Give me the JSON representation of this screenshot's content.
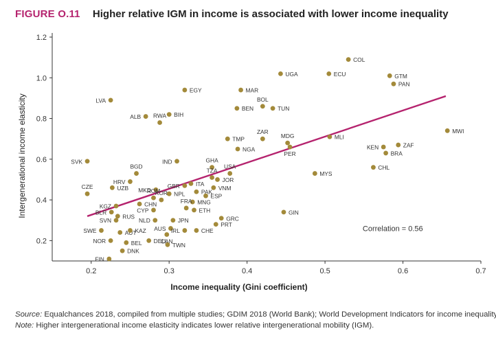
{
  "figure": {
    "label": "FIGURE O.11",
    "title": "Higher relative IGM in income is associated with lower income inequality"
  },
  "notes": {
    "source_label": "Source:",
    "source_text": " Equalchances 2018, compiled from multiple studies; GDIM 2018 (World Bank); World Development Indicators for income inequality.",
    "note_label": "Note:",
    "note_text": " Higher intergenerational income elasticity indicates lower relative intergenerational mobility (IGM)."
  },
  "chart_data": {
    "type": "scatter",
    "title": "Higher relative IGM in income is associated with lower income inequality",
    "xlabel": "Income inequality (Gini coefficient)",
    "ylabel": "Intergenerational income elasticity",
    "xlim": [
      0.15,
      0.7
    ],
    "ylim": [
      0.1,
      1.2
    ],
    "xticks": [
      0.2,
      0.3,
      0.4,
      0.5,
      0.6,
      0.7
    ],
    "yticks": [
      0.2,
      0.4,
      0.6,
      0.8,
      1.0,
      1.2
    ],
    "xtick_labels": [
      "0.2",
      "0.3",
      "0.4",
      "0.5",
      "0.6",
      "0.7"
    ],
    "ytick_labels": [
      "0.2",
      "0.4",
      "0.6",
      "0.8",
      "1.0",
      "1.2"
    ],
    "grid": false,
    "annotation": "Correlation = 0.56",
    "point_color": "#a38a3a",
    "trend_color": "#b5236e",
    "trend_line": {
      "x": [
        0.195,
        0.655
      ],
      "y": [
        0.32,
        0.91
      ]
    },
    "points": [
      {
        "label": "COL",
        "x": 0.53,
        "y": 1.09
      },
      {
        "label": "UGA",
        "x": 0.443,
        "y": 1.02
      },
      {
        "label": "ECU",
        "x": 0.505,
        "y": 1.02
      },
      {
        "label": "GTM",
        "x": 0.583,
        "y": 1.01
      },
      {
        "label": "PAN",
        "x": 0.588,
        "y": 0.97
      },
      {
        "label": "EGY",
        "x": 0.32,
        "y": 0.94
      },
      {
        "label": "MAR",
        "x": 0.392,
        "y": 0.94
      },
      {
        "label": "LVA",
        "x": 0.225,
        "y": 0.89
      },
      {
        "label": "BOL",
        "x": 0.42,
        "y": 0.86
      },
      {
        "label": "BEN",
        "x": 0.387,
        "y": 0.85
      },
      {
        "label": "TUN",
        "x": 0.433,
        "y": 0.85
      },
      {
        "label": "BIH",
        "x": 0.3,
        "y": 0.82
      },
      {
        "label": "ALB",
        "x": 0.27,
        "y": 0.81
      },
      {
        "label": "RWA",
        "x": 0.288,
        "y": 0.78
      },
      {
        "label": "MWI",
        "x": 0.657,
        "y": 0.74
      },
      {
        "label": "ZAR",
        "x": 0.42,
        "y": 0.7
      },
      {
        "label": "TMP",
        "x": 0.375,
        "y": 0.7
      },
      {
        "label": "MDG",
        "x": 0.452,
        "y": 0.68
      },
      {
        "label": "MLI",
        "x": 0.506,
        "y": 0.71
      },
      {
        "label": "NGA",
        "x": 0.388,
        "y": 0.65
      },
      {
        "label": "KEN",
        "x": 0.575,
        "y": 0.66
      },
      {
        "label": "ZAF",
        "x": 0.594,
        "y": 0.67
      },
      {
        "label": "BRA",
        "x": 0.578,
        "y": 0.63
      },
      {
        "label": "PER",
        "x": 0.455,
        "y": 0.66
      },
      {
        "label": "SVK",
        "x": 0.195,
        "y": 0.59
      },
      {
        "label": "IND",
        "x": 0.31,
        "y": 0.59
      },
      {
        "label": "GHA",
        "x": 0.355,
        "y": 0.56
      },
      {
        "label": "CHL",
        "x": 0.562,
        "y": 0.56
      },
      {
        "label": "BGD",
        "x": 0.258,
        "y": 0.53
      },
      {
        "label": "USA",
        "x": 0.378,
        "y": 0.53
      },
      {
        "label": "TZA",
        "x": 0.355,
        "y": 0.51
      },
      {
        "label": "JOR",
        "x": 0.362,
        "y": 0.5
      },
      {
        "label": "MYS",
        "x": 0.487,
        "y": 0.53
      },
      {
        "label": "HRV",
        "x": 0.25,
        "y": 0.49
      },
      {
        "label": "GBR",
        "x": 0.32,
        "y": 0.47
      },
      {
        "label": "ITA",
        "x": 0.328,
        "y": 0.48
      },
      {
        "label": "VNM",
        "x": 0.357,
        "y": 0.46
      },
      {
        "label": "CZE",
        "x": 0.195,
        "y": 0.43
      },
      {
        "label": "UZB",
        "x": 0.227,
        "y": 0.46
      },
      {
        "label": "MKD",
        "x": 0.283,
        "y": 0.45
      },
      {
        "label": "PAK",
        "x": 0.335,
        "y": 0.44
      },
      {
        "label": "NPL",
        "x": 0.3,
        "y": 0.43
      },
      {
        "label": "ESP",
        "x": 0.347,
        "y": 0.42
      },
      {
        "label": "ROM",
        "x": 0.28,
        "y": 0.41
      },
      {
        "label": "KOR",
        "x": 0.29,
        "y": 0.4
      },
      {
        "label": "MNG",
        "x": 0.33,
        "y": 0.39
      },
      {
        "label": "CHN",
        "x": 0.262,
        "y": 0.38
      },
      {
        "label": "KGZ",
        "x": 0.232,
        "y": 0.37
      },
      {
        "label": "FRA",
        "x": 0.322,
        "y": 0.36
      },
      {
        "label": "ETH",
        "x": 0.332,
        "y": 0.35
      },
      {
        "label": "CYP",
        "x": 0.28,
        "y": 0.35
      },
      {
        "label": "BLR",
        "x": 0.226,
        "y": 0.34
      },
      {
        "label": "RUS",
        "x": 0.234,
        "y": 0.32
      },
      {
        "label": "GIN",
        "x": 0.447,
        "y": 0.34
      },
      {
        "label": "NLD",
        "x": 0.282,
        "y": 0.3
      },
      {
        "label": "JPN",
        "x": 0.305,
        "y": 0.3
      },
      {
        "label": "SVN",
        "x": 0.232,
        "y": 0.3
      },
      {
        "label": "GRC",
        "x": 0.367,
        "y": 0.31
      },
      {
        "label": "PRT",
        "x": 0.36,
        "y": 0.28
      },
      {
        "label": "SWE",
        "x": 0.213,
        "y": 0.25
      },
      {
        "label": "AUT",
        "x": 0.237,
        "y": 0.24
      },
      {
        "label": "KAZ",
        "x": 0.25,
        "y": 0.25
      },
      {
        "label": "AUS",
        "x": 0.302,
        "y": 0.26
      },
      {
        "label": "IRL",
        "x": 0.32,
        "y": 0.25
      },
      {
        "label": "CHE",
        "x": 0.335,
        "y": 0.25
      },
      {
        "label": "CAN",
        "x": 0.297,
        "y": 0.23
      },
      {
        "label": "NOR",
        "x": 0.225,
        "y": 0.2
      },
      {
        "label": "BEL",
        "x": 0.245,
        "y": 0.19
      },
      {
        "label": "DEU",
        "x": 0.274,
        "y": 0.2
      },
      {
        "label": "TWN",
        "x": 0.298,
        "y": 0.18
      },
      {
        "label": "DNK",
        "x": 0.24,
        "y": 0.15
      },
      {
        "label": "FIN",
        "x": 0.223,
        "y": 0.11
      }
    ]
  }
}
